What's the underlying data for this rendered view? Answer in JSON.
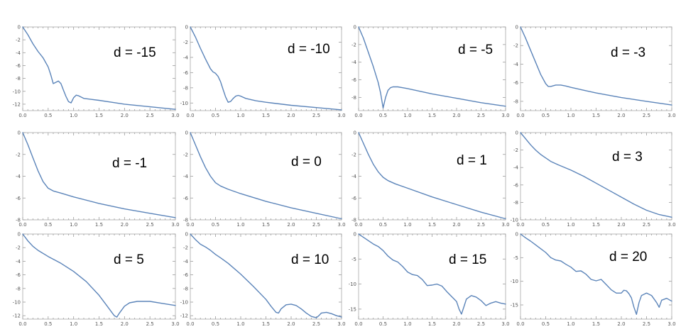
{
  "figure": {
    "line_color": "#5b84b9",
    "frame_color": "#b9b9b9",
    "background": "#ffffff"
  },
  "chart_data": [
    {
      "type": "line",
      "title": "d = -15",
      "xlabel": "",
      "ylabel": "",
      "xlim": [
        0,
        3
      ],
      "ylim": [
        -13,
        0
      ],
      "x_ticks": [
        "0.0",
        "0.5",
        "1.0",
        "1.5",
        "2.0",
        "2.5",
        "3.0"
      ],
      "y_ticks": [
        "0",
        "-2",
        "-4",
        "-6",
        "-8",
        "-10",
        "-12"
      ],
      "grid": false,
      "series": [
        {
          "x": [
            0,
            0.1,
            0.2,
            0.3,
            0.4,
            0.5,
            0.55,
            0.6,
            0.65,
            0.7,
            0.75,
            0.8,
            0.85,
            0.9,
            0.95,
            1.0,
            1.05,
            1.1,
            1.2,
            1.3,
            1.5,
            1.75,
            2,
            2.5,
            3
          ],
          "y": [
            0,
            -1.2,
            -2.6,
            -3.8,
            -4.8,
            -6.2,
            -7.4,
            -8.8,
            -8.6,
            -8.4,
            -8.8,
            -9.8,
            -10.8,
            -11.6,
            -11.8,
            -11.0,
            -10.6,
            -10.7,
            -11.1,
            -11.2,
            -11.4,
            -11.7,
            -12.0,
            -12.4,
            -12.8
          ]
        }
      ]
    },
    {
      "type": "line",
      "title": "d = -10",
      "xlabel": "",
      "ylabel": "",
      "xlim": [
        0,
        3
      ],
      "ylim": [
        -11,
        0
      ],
      "x_ticks": [
        "0.0",
        "0.5",
        "1.0",
        "1.5",
        "2.0",
        "2.5",
        "3.0"
      ],
      "y_ticks": [
        "0",
        "-2",
        "-4",
        "-6",
        "-8",
        "-10"
      ],
      "grid": false,
      "series": [
        {
          "x": [
            0,
            0.1,
            0.2,
            0.3,
            0.4,
            0.45,
            0.5,
            0.55,
            0.6,
            0.65,
            0.7,
            0.75,
            0.8,
            0.85,
            0.9,
            0.95,
            1.0,
            1.1,
            1.3,
            1.5,
            2,
            2.5,
            3
          ],
          "y": [
            0,
            -1.3,
            -2.8,
            -4.2,
            -5.5,
            -5.9,
            -6.1,
            -6.5,
            -7.2,
            -8.2,
            -9.2,
            -9.9,
            -9.8,
            -9.4,
            -9.1,
            -9.0,
            -9.1,
            -9.4,
            -9.7,
            -9.9,
            -10.3,
            -10.6,
            -10.9
          ]
        }
      ]
    },
    {
      "type": "line",
      "title": "d = -5",
      "xlabel": "",
      "ylabel": "",
      "xlim": [
        0,
        3
      ],
      "ylim": [
        -9.5,
        0
      ],
      "x_ticks": [
        "0.0",
        "0.5",
        "1.0",
        "1.5",
        "2.0",
        "2.5",
        "3.0"
      ],
      "y_ticks": [
        "0",
        "-2",
        "-4",
        "-6",
        "-8"
      ],
      "grid": false,
      "series": [
        {
          "x": [
            0,
            0.1,
            0.2,
            0.3,
            0.4,
            0.45,
            0.5,
            0.55,
            0.6,
            0.65,
            0.7,
            0.8,
            0.9,
            1.0,
            1.25,
            1.5,
            2,
            2.5,
            3
          ],
          "y": [
            0,
            -1.3,
            -2.9,
            -4.5,
            -6.3,
            -7.5,
            -9.2,
            -8.0,
            -7.2,
            -6.9,
            -6.8,
            -6.8,
            -6.9,
            -7.0,
            -7.3,
            -7.6,
            -8.1,
            -8.6,
            -9.0
          ]
        }
      ]
    },
    {
      "type": "line",
      "title": "d = -3",
      "xlabel": "",
      "ylabel": "",
      "xlim": [
        0,
        3
      ],
      "ylim": [
        -9,
        0
      ],
      "x_ticks": [
        "0.0",
        "0.5",
        "1.0",
        "1.5",
        "2.0",
        "2.5",
        "3.0"
      ],
      "y_ticks": [
        "0",
        "-2",
        "-4",
        "-6",
        "-8"
      ],
      "grid": false,
      "series": [
        {
          "x": [
            0,
            0.1,
            0.2,
            0.3,
            0.4,
            0.5,
            0.55,
            0.6,
            0.7,
            0.8,
            0.9,
            1.0,
            1.25,
            1.5,
            2,
            2.5,
            3
          ],
          "y": [
            0,
            -1.2,
            -2.5,
            -3.8,
            -5.1,
            -6.1,
            -6.4,
            -6.4,
            -6.25,
            -6.25,
            -6.35,
            -6.5,
            -6.8,
            -7.1,
            -7.6,
            -8.0,
            -8.4
          ]
        }
      ]
    },
    {
      "type": "line",
      "title": "d = -1",
      "xlabel": "",
      "ylabel": "",
      "xlim": [
        0,
        3
      ],
      "ylim": [
        -8,
        0
      ],
      "x_ticks": [
        "0.0",
        "0.5",
        "1.0",
        "1.5",
        "2.0",
        "2.5",
        "3.0"
      ],
      "y_ticks": [
        "0",
        "-2",
        "-4",
        "-6",
        "-8"
      ],
      "grid": false,
      "series": [
        {
          "x": [
            0,
            0.1,
            0.2,
            0.3,
            0.4,
            0.5,
            0.6,
            0.75,
            1.0,
            1.5,
            2,
            2.5,
            3
          ],
          "y": [
            0,
            -1.1,
            -2.3,
            -3.5,
            -4.5,
            -5.1,
            -5.35,
            -5.55,
            -5.9,
            -6.5,
            -7.0,
            -7.4,
            -7.8
          ]
        }
      ]
    },
    {
      "type": "line",
      "title": "d = 0",
      "xlabel": "",
      "ylabel": "",
      "xlim": [
        0,
        3
      ],
      "ylim": [
        -8,
        0
      ],
      "x_ticks": [
        "0.0",
        "0.5",
        "1.0",
        "1.5",
        "2.0",
        "2.5",
        "3.0"
      ],
      "y_ticks": [
        "0",
        "-2",
        "-4",
        "-6",
        "-8"
      ],
      "grid": false,
      "series": [
        {
          "x": [
            0,
            0.1,
            0.2,
            0.3,
            0.4,
            0.5,
            0.6,
            0.75,
            1.0,
            1.5,
            2,
            2.5,
            3
          ],
          "y": [
            0,
            -1.1,
            -2.2,
            -3.2,
            -4.0,
            -4.6,
            -4.9,
            -5.2,
            -5.6,
            -6.3,
            -6.9,
            -7.4,
            -7.9
          ]
        }
      ]
    },
    {
      "type": "line",
      "title": "d = 1",
      "xlabel": "",
      "ylabel": "",
      "xlim": [
        0,
        3
      ],
      "ylim": [
        -8,
        0
      ],
      "x_ticks": [
        "0.0",
        "0.5",
        "1.0",
        "1.5",
        "2.0",
        "2.5",
        "3.0"
      ],
      "y_ticks": [
        "0",
        "-2",
        "-4",
        "-6",
        "-8"
      ],
      "grid": false,
      "series": [
        {
          "x": [
            0,
            0.1,
            0.2,
            0.3,
            0.4,
            0.5,
            0.6,
            0.75,
            1.0,
            1.5,
            2,
            2.5,
            3
          ],
          "y": [
            0,
            -1.0,
            -2.0,
            -2.9,
            -3.6,
            -4.1,
            -4.4,
            -4.7,
            -5.1,
            -5.9,
            -6.6,
            -7.3,
            -7.9
          ]
        }
      ]
    },
    {
      "type": "line",
      "title": "d = 3",
      "xlabel": "",
      "ylabel": "",
      "xlim": [
        0,
        3
      ],
      "ylim": [
        -10,
        0
      ],
      "x_ticks": [
        "0.0",
        "0.5",
        "1.0",
        "1.5",
        "2.0",
        "2.5",
        "3.0"
      ],
      "y_ticks": [
        "0",
        "-2",
        "-4",
        "-6",
        "-8",
        "-10"
      ],
      "grid": false,
      "series": [
        {
          "x": [
            0,
            0.1,
            0.2,
            0.3,
            0.4,
            0.5,
            0.6,
            0.75,
            1.0,
            1.25,
            1.5,
            1.75,
            2.0,
            2.25,
            2.5,
            2.75,
            3.0
          ],
          "y": [
            0,
            -0.7,
            -1.4,
            -2.0,
            -2.5,
            -2.9,
            -3.3,
            -3.7,
            -4.3,
            -5.0,
            -5.8,
            -6.6,
            -7.4,
            -8.2,
            -8.9,
            -9.4,
            -9.7
          ]
        }
      ]
    },
    {
      "type": "line",
      "title": "d = 5",
      "xlabel": "",
      "ylabel": "",
      "xlim": [
        0,
        3
      ],
      "ylim": [
        -12.5,
        0
      ],
      "x_ticks": [
        "0.0",
        "0.5",
        "1.0",
        "1.5",
        "2.0",
        "2.5",
        "3.0"
      ],
      "y_ticks": [
        "0",
        "-2",
        "-4",
        "-6",
        "-8",
        "-10",
        "-12"
      ],
      "grid": false,
      "series": [
        {
          "x": [
            0,
            0.1,
            0.2,
            0.3,
            0.5,
            0.75,
            1.0,
            1.25,
            1.5,
            1.65,
            1.75,
            1.8,
            1.85,
            1.9,
            2.0,
            2.1,
            2.25,
            2.5,
            2.75,
            3.0
          ],
          "y": [
            0,
            -1.0,
            -1.8,
            -2.4,
            -3.3,
            -4.3,
            -5.5,
            -7.0,
            -9.0,
            -10.5,
            -11.5,
            -12.0,
            -12.2,
            -11.6,
            -10.6,
            -10.1,
            -9.9,
            -9.9,
            -10.2,
            -10.5
          ]
        }
      ]
    },
    {
      "type": "line",
      "title": "d = 10",
      "xlabel": "",
      "ylabel": "",
      "xlim": [
        0,
        3
      ],
      "ylim": [
        -12.5,
        0
      ],
      "x_ticks": [
        "0.0",
        "0.5",
        "1.0",
        "1.5",
        "2.0",
        "2.5",
        "3.0"
      ],
      "y_ticks": [
        "0",
        "-2",
        "-4",
        "-6",
        "-8",
        "-10",
        "-12"
      ],
      "grid": false,
      "series": [
        {
          "x": [
            0,
            0.1,
            0.2,
            0.3,
            0.4,
            0.5,
            0.6,
            0.75,
            1.0,
            1.25,
            1.5,
            1.6,
            1.7,
            1.75,
            1.8,
            1.9,
            2.0,
            2.1,
            2.2,
            2.3,
            2.4,
            2.5,
            2.55,
            2.6,
            2.7,
            2.8,
            2.9,
            3.0
          ],
          "y": [
            0,
            -0.8,
            -1.5,
            -1.9,
            -2.4,
            -3.0,
            -3.5,
            -4.3,
            -5.9,
            -7.7,
            -9.6,
            -10.6,
            -11.5,
            -11.6,
            -11.0,
            -10.4,
            -10.3,
            -10.5,
            -11.0,
            -11.6,
            -12.1,
            -12.3,
            -12.0,
            -11.6,
            -11.5,
            -11.7,
            -12.0,
            -12.2
          ]
        }
      ]
    },
    {
      "type": "line",
      "title": "d = 15",
      "xlabel": "",
      "ylabel": "",
      "xlim": [
        0,
        3
      ],
      "ylim": [
        -17,
        0
      ],
      "x_ticks": [
        "0.0",
        "0.5",
        "1.0",
        "1.5",
        "2.0",
        "2.5",
        "3.0"
      ],
      "y_ticks": [
        "0",
        "-5",
        "-10",
        "-15"
      ],
      "grid": false,
      "series": [
        {
          "x": [
            0,
            0.15,
            0.3,
            0.4,
            0.5,
            0.6,
            0.7,
            0.8,
            0.9,
            1.0,
            1.1,
            1.2,
            1.3,
            1.4,
            1.5,
            1.6,
            1.7,
            1.8,
            1.9,
            2.0,
            2.05,
            2.1,
            2.15,
            2.2,
            2.3,
            2.4,
            2.5,
            2.6,
            2.7,
            2.8,
            2.9,
            3.0
          ],
          "y": [
            0,
            -1.0,
            -2.0,
            -2.5,
            -3.3,
            -4.4,
            -5.2,
            -5.6,
            -6.5,
            -7.6,
            -8.1,
            -8.3,
            -9.1,
            -10.3,
            -10.2,
            -10.0,
            -10.4,
            -11.5,
            -12.5,
            -13.5,
            -15.0,
            -16.0,
            -14.5,
            -13.0,
            -12.3,
            -12.6,
            -13.3,
            -14.3,
            -13.8,
            -13.5,
            -13.8,
            -14.0
          ]
        }
      ]
    },
    {
      "type": "line",
      "title": "d = 20",
      "xlabel": "",
      "ylabel": "",
      "xlim": [
        0,
        3
      ],
      "ylim": [
        -18,
        0
      ],
      "x_ticks": [
        "0.0",
        "0.5",
        "1.0",
        "1.5",
        "2.0",
        "2.5",
        "3.0"
      ],
      "y_ticks": [
        "0",
        "-5",
        "-10",
        "-15"
      ],
      "grid": false,
      "series": [
        {
          "x": [
            0,
            0.1,
            0.2,
            0.3,
            0.4,
            0.5,
            0.6,
            0.7,
            0.8,
            0.9,
            1.0,
            1.1,
            1.2,
            1.3,
            1.4,
            1.5,
            1.6,
            1.7,
            1.8,
            1.9,
            2.0,
            2.05,
            2.1,
            2.15,
            2.2,
            2.25,
            2.3,
            2.35,
            2.4,
            2.5,
            2.6,
            2.7,
            2.75,
            2.8,
            2.9,
            3.0
          ],
          "y": [
            0,
            -0.8,
            -1.5,
            -2.3,
            -3.1,
            -3.9,
            -5.0,
            -5.5,
            -5.7,
            -6.4,
            -7.0,
            -7.9,
            -7.8,
            -8.5,
            -9.6,
            -9.9,
            -9.6,
            -10.7,
            -11.8,
            -12.5,
            -12.5,
            -11.9,
            -12.0,
            -12.6,
            -13.5,
            -15.5,
            -17.0,
            -14.5,
            -13.0,
            -12.5,
            -13.0,
            -14.5,
            -15.5,
            -14.0,
            -13.6,
            -14.2
          ]
        }
      ]
    }
  ]
}
